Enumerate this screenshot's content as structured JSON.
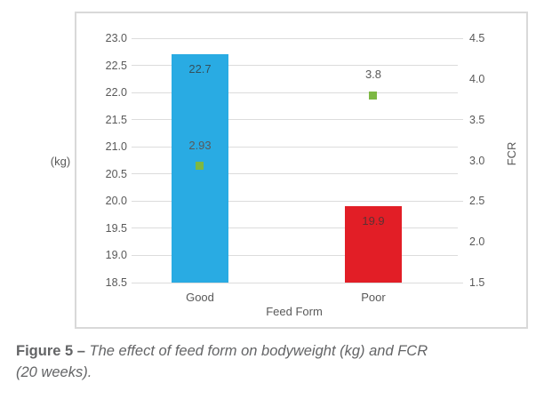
{
  "chart_data": {
    "type": "bar",
    "categories": [
      "Good",
      "Poor"
    ],
    "series": [
      {
        "name": "Bodyweight",
        "type": "bar",
        "axis": "left",
        "values": [
          22.7,
          19.9
        ],
        "labels": [
          "22.7",
          "19.9"
        ],
        "bar_colors": [
          "#29abe3",
          "#e21e26"
        ]
      },
      {
        "name": "FCR",
        "type": "scatter",
        "marker": "square",
        "axis": "right",
        "values": [
          2.93,
          3.8
        ],
        "labels": [
          "2.93",
          "3.8"
        ],
        "color": "#7db843"
      }
    ],
    "xlabel": "Feed Form",
    "left_axis": {
      "label": "(kg)",
      "min": 18.5,
      "max": 23.0,
      "step": 0.5,
      "ticks": [
        "23.0",
        "22.5",
        "22.0",
        "21.5",
        "21.0",
        "20.5",
        "20.0",
        "19.5",
        "19.0",
        "18.5"
      ]
    },
    "right_axis": {
      "label": "FCR",
      "min": 1.5,
      "max": 4.5,
      "step": 0.5,
      "ticks": [
        "4.5",
        "4.0",
        "3.5",
        "3.0",
        "2.5",
        "2.0",
        "1.5"
      ]
    },
    "grid": true,
    "legend": "none",
    "gridline_color": "#dcdcdc",
    "panel_border_color": "#d9d9d9",
    "tick_text_color": "#595959"
  },
  "caption": {
    "prefix": "Figure 5 – ",
    "line1": "The effect of feed form on bodyweight (kg) and FCR",
    "line2": "(20 weeks)."
  }
}
